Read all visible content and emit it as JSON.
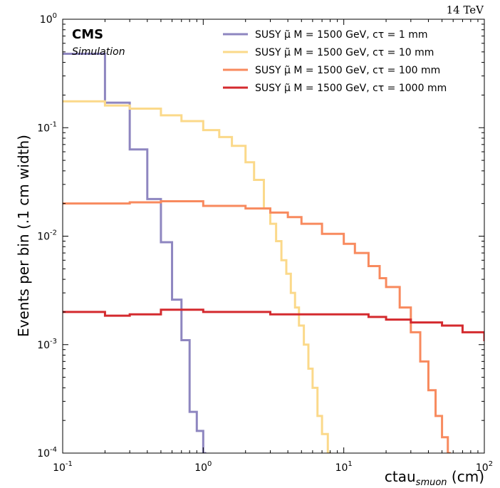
{
  "chart_data": {
    "type": "line",
    "title": "",
    "energy_label": "14 TeV",
    "experiment_label": "CMS",
    "experiment_sublabel": "Simulation",
    "xlabel_main": "ctau",
    "xlabel_sub": "smuon",
    "xlabel_unit": "(cm)",
    "ylabel": "Events per bin (.1 cm width)",
    "x_scale": "log",
    "y_scale": "log",
    "xlim": [
      0.1,
      100
    ],
    "ylim": [
      0.0001,
      1
    ],
    "x_ticks": [
      {
        "value": 0.1,
        "mant": "10",
        "exp": "-1"
      },
      {
        "value": 1,
        "mant": "10",
        "exp": "0"
      },
      {
        "value": 10,
        "mant": "10",
        "exp": "1"
      },
      {
        "value": 100,
        "mant": "10",
        "exp": "2"
      }
    ],
    "y_ticks": [
      {
        "value": 0.0001,
        "mant": "10",
        "exp": "-4"
      },
      {
        "value": 0.001,
        "mant": "10",
        "exp": "-3"
      },
      {
        "value": 0.01,
        "mant": "10",
        "exp": "-2"
      },
      {
        "value": 0.1,
        "mant": "10",
        "exp": "-1"
      },
      {
        "value": 1,
        "mant": "10",
        "exp": "0"
      }
    ],
    "grid": false,
    "legend_position": "top-right",
    "series": [
      {
        "name": "SUSY μ̃ M = 1500 GeV, cτ = 1 mm",
        "color": "#8e86c0",
        "points": [
          [
            0.1,
            0.48
          ],
          [
            0.2,
            0.17
          ],
          [
            0.3,
            0.063
          ],
          [
            0.4,
            0.022
          ],
          [
            0.5,
            0.0088
          ],
          [
            0.6,
            0.0026
          ],
          [
            0.7,
            0.0011
          ],
          [
            0.8,
            0.00024
          ],
          [
            0.9,
            0.00016
          ],
          [
            1.0,
            0.0001
          ]
        ]
      },
      {
        "name": "SUSY μ̃ M = 1500 GeV, cτ = 10 mm",
        "color": "#fbd98a",
        "points": [
          [
            0.1,
            0.175
          ],
          [
            0.2,
            0.16
          ],
          [
            0.3,
            0.15
          ],
          [
            0.5,
            0.13
          ],
          [
            0.7,
            0.115
          ],
          [
            1.0,
            0.095
          ],
          [
            1.3,
            0.082
          ],
          [
            1.6,
            0.068
          ],
          [
            2.0,
            0.048
          ],
          [
            2.3,
            0.033
          ],
          [
            2.7,
            0.018
          ],
          [
            3.0,
            0.013
          ],
          [
            3.3,
            0.009
          ],
          [
            3.6,
            0.006
          ],
          [
            3.9,
            0.0045
          ],
          [
            4.2,
            0.003
          ],
          [
            4.5,
            0.0022
          ],
          [
            4.8,
            0.0015
          ],
          [
            5.2,
            0.001
          ],
          [
            5.6,
            0.0006
          ],
          [
            6.0,
            0.0004
          ],
          [
            6.5,
            0.00022
          ],
          [
            7.0,
            0.00015
          ],
          [
            7.7,
            0.0001
          ]
        ]
      },
      {
        "name": "SUSY μ̃ M = 1500 GeV, cτ = 100 mm",
        "color": "#f88a5e",
        "points": [
          [
            0.1,
            0.02
          ],
          [
            0.3,
            0.0205
          ],
          [
            0.5,
            0.021
          ],
          [
            1.0,
            0.019
          ],
          [
            2.0,
            0.018
          ],
          [
            3.0,
            0.0165
          ],
          [
            4.0,
            0.015
          ],
          [
            5.0,
            0.013
          ],
          [
            7.0,
            0.0105
          ],
          [
            10.0,
            0.0085
          ],
          [
            12.0,
            0.007
          ],
          [
            15.0,
            0.0053
          ],
          [
            18.0,
            0.0041
          ],
          [
            20.0,
            0.0034
          ],
          [
            25.0,
            0.0022
          ],
          [
            30.0,
            0.0013
          ],
          [
            35.0,
            0.0007
          ],
          [
            40.0,
            0.00038
          ],
          [
            45.0,
            0.00022
          ],
          [
            50.0,
            0.00014
          ],
          [
            55.0,
            0.0001
          ]
        ]
      },
      {
        "name": "SUSY μ̃ M = 1500 GeV, cτ = 1000 mm",
        "color": "#d42a2e",
        "points": [
          [
            0.1,
            0.002
          ],
          [
            0.2,
            0.00185
          ],
          [
            0.3,
            0.0019
          ],
          [
            0.5,
            0.0021
          ],
          [
            0.7,
            0.0021
          ],
          [
            1.0,
            0.002
          ],
          [
            2.0,
            0.002
          ],
          [
            3.0,
            0.0019
          ],
          [
            5.0,
            0.0019
          ],
          [
            10.0,
            0.0019
          ],
          [
            15.0,
            0.0018
          ],
          [
            20.0,
            0.0017
          ],
          [
            30.0,
            0.0016
          ],
          [
            50.0,
            0.0015
          ],
          [
            70.0,
            0.0013
          ],
          [
            100.0,
            0.0011
          ]
        ]
      }
    ]
  }
}
